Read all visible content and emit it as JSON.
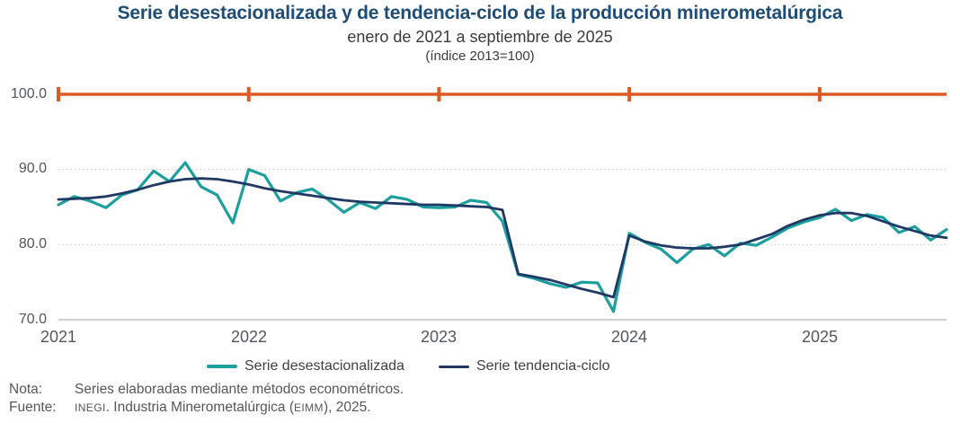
{
  "header": {
    "title": "Serie desestacionalizada y de tendencia-ciclo de la producción minerometalúrgica",
    "subtitle": "enero de 2021 a septiembre de 2025",
    "index_note": "(índice 2013=100)"
  },
  "chart_data": {
    "type": "line",
    "title": "Serie desestacionalizada y de tendencia-ciclo de la producción minerometalúrgica",
    "subtitle": "enero de 2021 a septiembre de 2025",
    "index_base_note": "(índice 2013=100)",
    "frequency": "monthly",
    "x_range": "enero 2021 a septiembre 2025",
    "categories_years": [
      "2021",
      "2022",
      "2023",
      "2024",
      "2025"
    ],
    "y_tick_labels": [
      "100.0",
      "90.0",
      "80.0",
      "70.0"
    ],
    "y_tick_values": [
      100,
      90,
      80,
      70
    ],
    "gridline_values": [
      90,
      80
    ],
    "ylim": [
      70,
      100
    ],
    "grid": "horizontal-dotted",
    "legend_position": "bottom",
    "reference_line": {
      "value": 100.0,
      "color": "#DD5A22"
    },
    "axis_color": "#BFBFBF",
    "label_color": "#54575C",
    "series": [
      {
        "name": "Serie desestacionalizada",
        "color": "#1D9F9F",
        "values": [
          85.3,
          86.4,
          85.8,
          84.9,
          86.6,
          87.3,
          89.8,
          88.4,
          90.9,
          87.7,
          86.6,
          82.9,
          90.0,
          89.2,
          85.8,
          86.9,
          87.4,
          86.0,
          84.3,
          85.6,
          84.8,
          86.4,
          86.0,
          85.0,
          84.9,
          85.0,
          85.9,
          85.6,
          83.1,
          76.0,
          75.5,
          74.8,
          74.3,
          75.0,
          74.9,
          71.1,
          81.5,
          80.3,
          79.4,
          77.6,
          79.4,
          80.0,
          78.5,
          80.2,
          79.9,
          81.0,
          82.2,
          83.0,
          83.6,
          84.7,
          83.2,
          84.0,
          83.6,
          81.6,
          82.4,
          80.6,
          82.0
        ]
      },
      {
        "name": "Serie tendencia-ciclo",
        "color": "#1F3864",
        "values": [
          86.0,
          86.1,
          86.2,
          86.4,
          86.8,
          87.3,
          87.9,
          88.4,
          88.7,
          88.8,
          88.7,
          88.4,
          88.0,
          87.5,
          87.1,
          86.8,
          86.5,
          86.2,
          85.9,
          85.7,
          85.6,
          85.5,
          85.4,
          85.3,
          85.3,
          85.2,
          85.1,
          85.0,
          84.6,
          76.1,
          75.7,
          75.3,
          74.7,
          74.1,
          73.6,
          73.0,
          81.2,
          80.4,
          79.9,
          79.6,
          79.5,
          79.5,
          79.7,
          80.0,
          80.7,
          81.4,
          82.5,
          83.3,
          83.9,
          84.2,
          84.2,
          83.8,
          83.1,
          82.4,
          81.8,
          81.2,
          80.9
        ]
      }
    ]
  },
  "footer": {
    "nota_label": "Nota:",
    "nota_text": "Series elaboradas mediante métodos econométricos.",
    "fuente_label": "Fuente:",
    "fuente_inegi": "INEGI",
    "fuente_dot": ".",
    "fuente_mid": " Industria Minerometalúrgica (",
    "fuente_eimm": "EIMM",
    "fuente_end": "), 2025."
  }
}
